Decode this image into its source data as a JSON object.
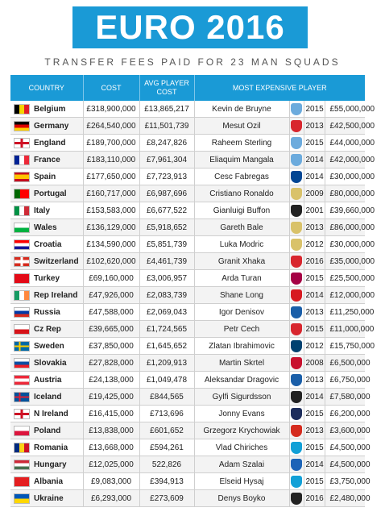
{
  "title": "EURO 2016",
  "subtitle": "TRANSFER FEES PAID FOR 23 MAN SQUADS",
  "headers": {
    "country": "COUNTRY",
    "cost": "COST",
    "avg_cost_line1": "AVG PLAYER",
    "avg_cost_line2": "COST",
    "player": "MOST EXPENSIVE PLAYER"
  },
  "rows": [
    {
      "country": "Belgium",
      "flag": "linear-gradient(90deg,#000 0 33%,#f5d400 33% 66%,#e21e26 66%)",
      "cost": "£318,900,000",
      "avg": "£13,865,217",
      "player": "Kevin de Bruyne",
      "badge": "#6cabdd",
      "year": "2015",
      "fee": "£55,000,000"
    },
    {
      "country": "Germany",
      "flag": "linear-gradient(180deg,#000 0 33%,#dd0000 33% 66%,#ffce00 66%)",
      "cost": "£264,540,000",
      "avg": "£11,501,739",
      "player": "Mesut Ozil",
      "badge": "#d8262e",
      "year": "2013",
      "fee": "£42,500,000"
    },
    {
      "country": "England",
      "flag": "linear-gradient(90deg,transparent 42%,#ce1124 42% 58%,transparent 58%),linear-gradient(180deg,#fff 38%,#ce1124 38% 62%,#fff 62%)",
      "cost": "£189,700,000",
      "avg": "£8,247,826",
      "player": "Raheem Sterling",
      "badge": "#6cabdd",
      "year": "2015",
      "fee": "£44,000,000"
    },
    {
      "country": "France",
      "flag": "linear-gradient(90deg,#002395 0 33%,#fff 33% 66%,#ed2939 66%)",
      "cost": "£183,110,000",
      "avg": "£7,961,304",
      "player": "Eliaquim Mangala",
      "badge": "#6cabdd",
      "year": "2014",
      "fee": "£42,000,000"
    },
    {
      "country": "Spain",
      "flag": "linear-gradient(180deg,#c60b1e 0 25%,#ffc400 25% 75%,#c60b1e 75%)",
      "cost": "£177,650,000",
      "avg": "£7,723,913",
      "player": "Cesc Fabregas",
      "badge": "#034694",
      "year": "2014",
      "fee": "£30,000,000"
    },
    {
      "country": "Portugal",
      "flag": "linear-gradient(90deg,#006600 0 40%,#ff0000 40%)",
      "cost": "£160,717,000",
      "avg": "£6,987,696",
      "player": "Cristiano Ronaldo",
      "badge": "#d9c26a",
      "year": "2009",
      "fee": "£80,000,000"
    },
    {
      "country": "Italy",
      "flag": "linear-gradient(90deg,#009246 0 33%,#fff 33% 66%,#ce2b37 66%)",
      "cost": "£153,583,000",
      "avg": "£6,677,522",
      "player": "Gianluigi Buffon",
      "badge": "#222222",
      "year": "2001",
      "fee": "£39,660,000"
    },
    {
      "country": "Wales",
      "flag": "linear-gradient(180deg,#fff 0 50%,#00b140 50%)",
      "cost": "£136,129,000",
      "avg": "£5,918,652",
      "player": "Gareth Bale",
      "badge": "#d9c26a",
      "year": "2013",
      "fee": "£86,000,000"
    },
    {
      "country": "Croatia",
      "flag": "linear-gradient(180deg,#ff0000 0 33%,#fff 33% 66%,#171796 66%)",
      "cost": "£134,590,000",
      "avg": "£5,851,739",
      "player": "Luka Modric",
      "badge": "#d9c26a",
      "year": "2012",
      "fee": "£30,000,000"
    },
    {
      "country": "Switzerland",
      "flag": "linear-gradient(90deg,transparent 43%,#fff 43% 57%,transparent 57%),linear-gradient(180deg,#d52b1e 30%,#fff 30% 70%,#d52b1e 70%)",
      "cost": "£102,620,000",
      "avg": "£4,461,739",
      "player": "Granit Xhaka",
      "badge": "#d8262e",
      "year": "2016",
      "fee": "£35,000,000"
    },
    {
      "country": "Turkey",
      "flag": "linear-gradient(90deg,#e30a17,#e30a17)",
      "cost": "£69,160,000",
      "avg": "£3,006,957",
      "player": "Arda Turan",
      "badge": "#a50044",
      "year": "2015",
      "fee": "£25,500,000"
    },
    {
      "country": "Rep Ireland",
      "flag": "linear-gradient(90deg,#169b62 0 33%,#fff 33% 66%,#ff883e 66%)",
      "cost": "£47,926,000",
      "avg": "£2,083,739",
      "player": "Shane Long",
      "badge": "#d71920",
      "year": "2014",
      "fee": "£12,000,000"
    },
    {
      "country": "Russia",
      "flag": "linear-gradient(180deg,#fff 0 33%,#0039a6 33% 66%,#d52b1e 66%)",
      "cost": "£47,588,000",
      "avg": "£2,069,043",
      "player": "Igor Denisov",
      "badge": "#1a5ea8",
      "year": "2013",
      "fee": "£11,250,000"
    },
    {
      "country": "Cz Rep",
      "flag": "linear-gradient(180deg,#fff 0 50%,#d7141a 50%)",
      "cost": "£39,665,000",
      "avg": "£1,724,565",
      "player": "Petr Cech",
      "badge": "#d8262e",
      "year": "2015",
      "fee": "£11,000,000"
    },
    {
      "country": "Sweden",
      "flag": "linear-gradient(90deg,transparent 30%,#fecc00 30% 42%,transparent 42%),linear-gradient(180deg,#006aa7 40%,#fecc00 40% 60%,#006aa7 60%)",
      "cost": "£37,850,000",
      "avg": "£1,645,652",
      "player": "Zlatan Ibrahimovic",
      "badge": "#004170",
      "year": "2012",
      "fee": "£15,750,000"
    },
    {
      "country": "Slovakia",
      "flag": "linear-gradient(180deg,#fff 0 33%,#0b4ea2 33% 66%,#ee1c25 66%)",
      "cost": "£27,828,000",
      "avg": "£1,209,913",
      "player": "Martin Skrtel",
      "badge": "#c8102e",
      "year": "2008",
      "fee": "£6,500,000"
    },
    {
      "country": "Austria",
      "flag": "linear-gradient(180deg,#ed2939 0 33%,#fff 33% 66%,#ed2939 66%)",
      "cost": "£24,138,000",
      "avg": "£1,049,478",
      "player": "Aleksandar Dragovic",
      "badge": "#1a5ea8",
      "year": "2013",
      "fee": "£6,750,000"
    },
    {
      "country": "Iceland",
      "flag": "linear-gradient(90deg,transparent 30%,#dc1e35 30% 42%,transparent 42%),linear-gradient(180deg,#02529c 40%,#dc1e35 40% 60%,#02529c 60%)",
      "cost": "£19,425,000",
      "avg": "£844,565",
      "player": "Gylfi Sigurdsson",
      "badge": "#222222",
      "year": "2014",
      "fee": "£7,580,000"
    },
    {
      "country": "N Ireland",
      "flag": "linear-gradient(90deg,transparent 42%,#ce1124 42% 58%,transparent 58%),linear-gradient(180deg,#fff 38%,#ce1124 38% 62%,#fff 62%)",
      "cost": "£16,415,000",
      "avg": "£713,696",
      "player": "Jonny Evans",
      "badge": "#1c2c5b",
      "year": "2015",
      "fee": "£6,200,000"
    },
    {
      "country": "Poland",
      "flag": "linear-gradient(180deg,#fff 0 50%,#dc143c 50%)",
      "cost": "£13,838,000",
      "avg": "£601,652",
      "player": "Grzegorz Krychowiak",
      "badge": "#d52b1e",
      "year": "2013",
      "fee": "£3,600,000"
    },
    {
      "country": "Romania",
      "flag": "linear-gradient(90deg,#002b7f 0 33%,#fcd116 33% 66%,#ce1126 66%)",
      "cost": "£13,668,000",
      "avg": "£594,261",
      "player": "Vlad Chiriches",
      "badge": "#12a0d7",
      "year": "2015",
      "fee": "£4,500,000"
    },
    {
      "country": "Hungary",
      "flag": "linear-gradient(180deg,#ce2939 0 33%,#fff 33% 66%,#477050 66%)",
      "cost": "£12,025,000",
      "avg": "522,826",
      "player": "Adam Szalai",
      "badge": "#1c63b7",
      "year": "2014",
      "fee": "£4,500,000"
    },
    {
      "country": "Albania",
      "flag": "linear-gradient(90deg,#e41e20,#e41e20)",
      "cost": "£9,083,000",
      "avg": "£394,913",
      "player": "Elseid Hysaj",
      "badge": "#12a0d7",
      "year": "2015",
      "fee": "£3,750,000"
    },
    {
      "country": "Ukraine",
      "flag": "linear-gradient(180deg,#0057b7 0 50%,#ffd700 50%)",
      "cost": "£6,293,000",
      "avg": "£273,609",
      "player": "Denys Boyko",
      "badge": "#222222",
      "year": "2016",
      "fee": "£2,480,000"
    }
  ]
}
